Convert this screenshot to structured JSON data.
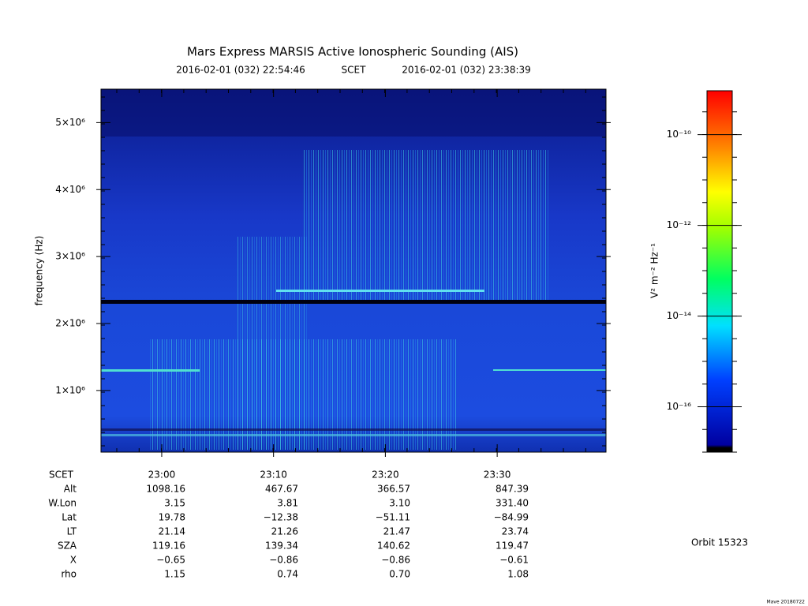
{
  "chart_data": {
    "type": "spectrogram",
    "title": "Mars Express MARSIS Active Ionospheric Sounding (AIS)",
    "start_time": "2016-02-01 (032) 22:54:46",
    "time_system": "SCET",
    "end_time": "2016-02-01 (032) 23:38:39",
    "y_label": "frequency (Hz)",
    "ylim": [
      80000,
      5500000
    ],
    "yticks": [
      {
        "value": 1000000,
        "label": "1×10⁶"
      },
      {
        "value": 2000000,
        "label": "2×10⁶"
      },
      {
        "value": 3000000,
        "label": "3×10⁶"
      },
      {
        "value": 4000000,
        "label": "4×10⁶"
      },
      {
        "value": 5000000,
        "label": "5×10⁶"
      }
    ],
    "xlim": [
      1374.57,
      1419.73
    ],
    "xticks": [
      {
        "value": 1380,
        "label": "23:00"
      },
      {
        "value": 1390,
        "label": "23:10"
      },
      {
        "value": 1400,
        "label": "23:20"
      },
      {
        "value": 1410,
        "label": "23:30"
      }
    ],
    "colorbar": {
      "label": "V² m⁻² Hz⁻¹",
      "log_scale": true,
      "zlim": [
        1e-17,
        9.3e-10
      ],
      "ticks": [
        {
          "value": 1e-10,
          "label": "10⁻¹⁰"
        },
        {
          "value": 1e-12,
          "label": "10⁻¹²"
        },
        {
          "value": 1e-14,
          "label": "10⁻¹⁴"
        },
        {
          "value": 1e-16,
          "label": "10⁻¹⁶"
        }
      ]
    },
    "ephemeris": {
      "rows": [
        {
          "label": "SCET",
          "values": [
            "23:00",
            "23:10",
            "23:20",
            "23:30"
          ]
        },
        {
          "label": "Alt",
          "values": [
            "1098.16",
            "467.67",
            "366.57",
            "847.39"
          ]
        },
        {
          "label": "W.Lon",
          "values": [
            "3.15",
            "3.81",
            "3.10",
            "331.40"
          ]
        },
        {
          "label": "Lat",
          "values": [
            "19.78",
            "−12.38",
            "−51.11",
            "−84.99"
          ]
        },
        {
          "label": "LT",
          "values": [
            "21.14",
            "21.26",
            "21.47",
            "23.74"
          ]
        },
        {
          "label": "SZA",
          "values": [
            "119.16",
            "139.34",
            "140.62",
            "119.47"
          ]
        },
        {
          "label": "X",
          "values": [
            "−0.65",
            "−0.86",
            "−0.86",
            "−0.61"
          ]
        },
        {
          "label": "rho",
          "values": [
            "1.15",
            "0.74",
            "0.70",
            "1.08"
          ]
        }
      ]
    },
    "orbit": "Orbit 15323",
    "credit": "Mave 20180722"
  }
}
